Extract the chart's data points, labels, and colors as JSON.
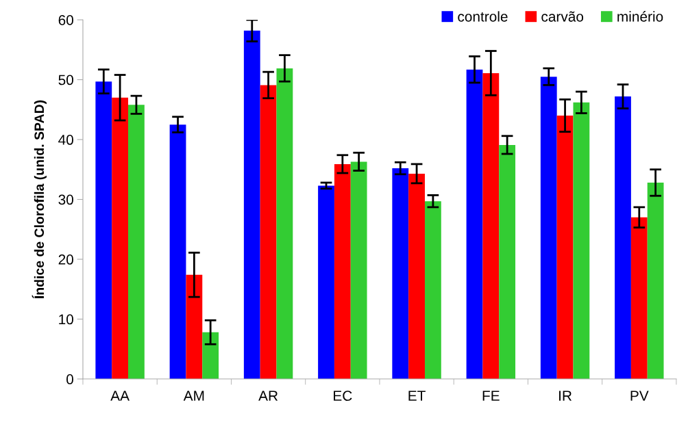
{
  "chart_data": {
    "type": "bar",
    "ylabel": "Índice de Clorofila (unid. SPAD)",
    "categories": [
      "AA",
      "AM",
      "AR",
      "EC",
      "ET",
      "FE",
      "IR",
      "PV"
    ],
    "series": [
      {
        "name": "controle",
        "color": "#0000ff",
        "values": [
          49.7,
          42.5,
          58.2,
          32.3,
          35.2,
          51.7,
          50.5,
          47.2
        ],
        "errors": [
          2.0,
          1.3,
          1.8,
          0.5,
          1.0,
          2.2,
          1.4,
          2.0
        ]
      },
      {
        "name": "carvão",
        "color": "#ff0000",
        "values": [
          47.0,
          17.4,
          49.1,
          35.9,
          34.3,
          51.1,
          44.0,
          27.0
        ],
        "errors": [
          3.8,
          3.7,
          2.2,
          1.5,
          1.6,
          3.7,
          2.7,
          1.7
        ]
      },
      {
        "name": "minério",
        "color": "#33cc33",
        "values": [
          45.8,
          7.8,
          51.9,
          36.3,
          29.7,
          39.1,
          46.2,
          32.8
        ],
        "errors": [
          1.5,
          2.0,
          2.2,
          1.5,
          1.0,
          1.5,
          1.8,
          2.2
        ]
      }
    ],
    "ylim": [
      0,
      60
    ],
    "yticks": [
      0,
      10,
      20,
      30,
      40,
      50,
      60
    ],
    "grid": false,
    "legend": "top right"
  }
}
